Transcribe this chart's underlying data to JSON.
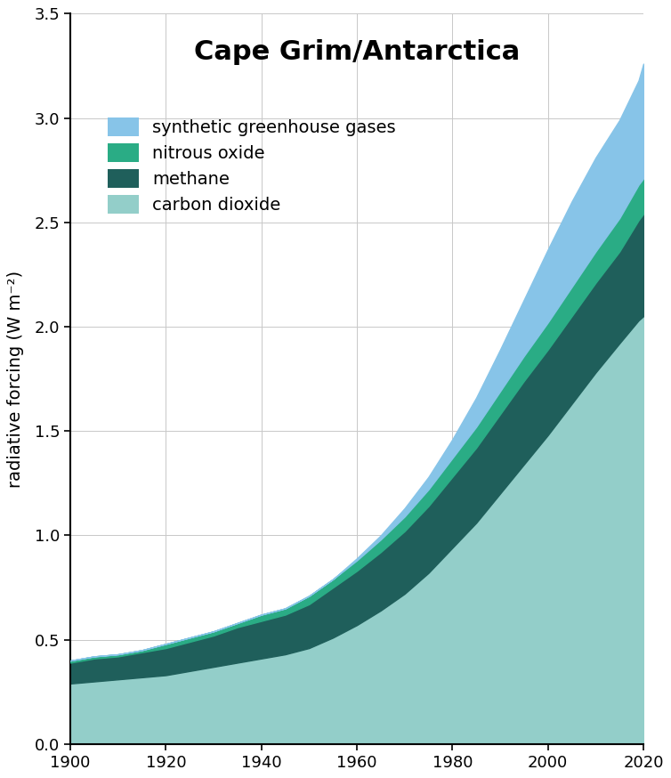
{
  "title": "Cape Grim/Antarctica",
  "ylabel": "radiative forcing (W m⁻²)",
  "years": [
    1900,
    1905,
    1910,
    1915,
    1920,
    1925,
    1930,
    1935,
    1940,
    1945,
    1950,
    1955,
    1960,
    1965,
    1970,
    1975,
    1980,
    1985,
    1990,
    1995,
    2000,
    2005,
    2010,
    2015,
    2019,
    2020
  ],
  "co2": [
    0.29,
    0.3,
    0.31,
    0.32,
    0.33,
    0.35,
    0.37,
    0.39,
    0.41,
    0.43,
    0.46,
    0.51,
    0.57,
    0.64,
    0.72,
    0.82,
    0.94,
    1.06,
    1.2,
    1.34,
    1.48,
    1.63,
    1.78,
    1.92,
    2.03,
    2.05
  ],
  "ch4": [
    0.1,
    0.11,
    0.11,
    0.12,
    0.13,
    0.14,
    0.15,
    0.17,
    0.18,
    0.19,
    0.21,
    0.24,
    0.26,
    0.28,
    0.3,
    0.32,
    0.34,
    0.36,
    0.38,
    0.4,
    0.41,
    0.42,
    0.43,
    0.44,
    0.48,
    0.49
  ],
  "n2o": [
    0.01,
    0.01,
    0.01,
    0.01,
    0.02,
    0.02,
    0.02,
    0.02,
    0.03,
    0.03,
    0.04,
    0.04,
    0.05,
    0.06,
    0.07,
    0.08,
    0.09,
    0.1,
    0.11,
    0.12,
    0.13,
    0.14,
    0.15,
    0.16,
    0.17,
    0.17
  ],
  "syng": [
    0.0,
    0.0,
    0.0,
    0.0,
    0.0,
    0.0,
    0.0,
    0.0,
    0.0,
    0.0,
    0.0,
    0.0,
    0.01,
    0.02,
    0.04,
    0.06,
    0.09,
    0.14,
    0.2,
    0.27,
    0.35,
    0.41,
    0.45,
    0.47,
    0.5,
    0.55
  ],
  "color_co2": "#93cec9",
  "color_ch4": "#1f5f5b",
  "color_n2o": "#2aac85",
  "color_syng": "#87c4e8",
  "legend_labels": [
    "synthetic greenhouse gases",
    "nitrous oxide",
    "methane",
    "carbon dioxide"
  ],
  "xlim": [
    1900,
    2020
  ],
  "ylim": [
    0,
    3.5
  ],
  "xticks": [
    1900,
    1920,
    1940,
    1960,
    1980,
    2000,
    2020
  ],
  "yticks": [
    0.0,
    0.5,
    1.0,
    1.5,
    2.0,
    2.5,
    3.0,
    3.5
  ],
  "title_fontsize": 22,
  "label_fontsize": 14,
  "tick_fontsize": 13,
  "legend_fontsize": 14
}
